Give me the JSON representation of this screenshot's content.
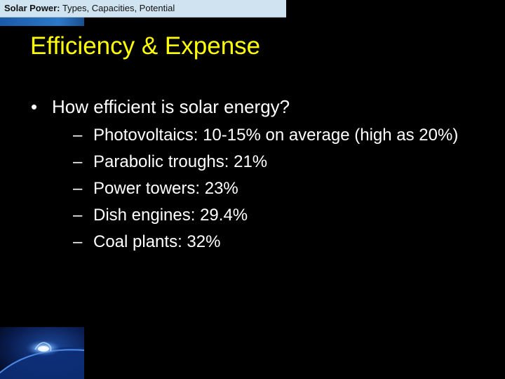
{
  "header": {
    "bold_text": "Solar Power:",
    "text": " Types, Capacities, Potential"
  },
  "slide": {
    "title": "Efficiency & Expense",
    "bullet_glyph": "•",
    "dash_glyph": "–",
    "bullet": "How efficient is solar energy?",
    "sub_items": [
      "Photovoltaics: 10-15% on average (high as 20%)",
      "Parabolic troughs: 21%",
      "Power towers: 23%",
      "Dish engines: 29.4%",
      "Coal plants: 32%"
    ]
  },
  "icons": {
    "corner_image": "sun-surface-image"
  },
  "colors": {
    "background": "#000000",
    "title": "#ffff00",
    "text": "#ffffff",
    "header_bar": "#cfe3f0",
    "accent": "#2d78c8"
  }
}
